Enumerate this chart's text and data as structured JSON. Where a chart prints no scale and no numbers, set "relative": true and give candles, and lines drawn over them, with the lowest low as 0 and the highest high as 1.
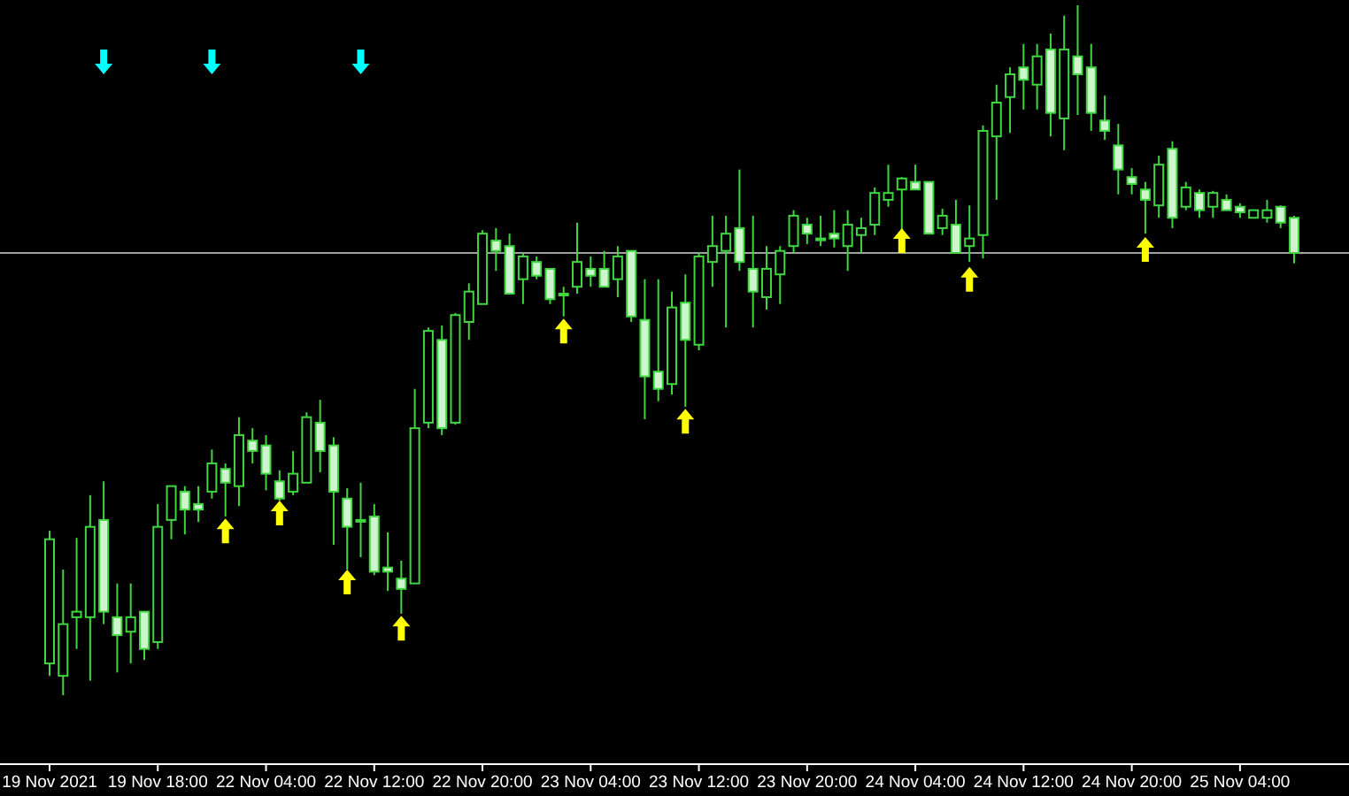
{
  "chart_data": {
    "type": "candlestick",
    "relative": true,
    "color": "#3fd63f",
    "categories": [
      "19 Nov 2021",
      null,
      null,
      null,
      null,
      null,
      null,
      null,
      "19 Nov 18:00",
      null,
      null,
      null,
      null,
      null,
      null,
      null,
      "22 Nov 04:00",
      null,
      null,
      null,
      null,
      null,
      null,
      null,
      "22 Nov 12:00",
      null,
      null,
      null,
      null,
      null,
      null,
      null,
      "22 Nov 20:00",
      null,
      null,
      null,
      null,
      null,
      null,
      null,
      "23 Nov 04:00",
      null,
      null,
      null,
      null,
      null,
      null,
      null,
      "23 Nov 12:00",
      null,
      null,
      null,
      null,
      null,
      null,
      null,
      "23 Nov 20:00",
      null,
      null,
      null,
      null,
      null,
      null,
      null,
      "24 Nov 04:00",
      null,
      null,
      null,
      null,
      null,
      null,
      null,
      "24 Nov 12:00",
      null,
      null,
      null,
      null,
      null,
      null,
      null,
      "24 Nov 20:00",
      null,
      null,
      null,
      null,
      null,
      null,
      null,
      "25 Nov 04:00",
      null,
      null,
      null,
      null
    ],
    "ohlc": [
      [
        0.046,
        0.238,
        0.028,
        0.226
      ],
      [
        0.028,
        0.182,
        0,
        0.103
      ],
      [
        0.113,
        0.228,
        0.067,
        0.121
      ],
      [
        0.113,
        0.29,
        0.021,
        0.244
      ],
      [
        0.254,
        0.31,
        0.103,
        0.121
      ],
      [
        0.113,
        0.162,
        0.033,
        0.087
      ],
      [
        0.092,
        0.162,
        0.046,
        0.113
      ],
      [
        0.121,
        0.121,
        0.051,
        0.067
      ],
      [
        0.077,
        0.277,
        0.067,
        0.244
      ],
      [
        0.254,
        0.303,
        0.226,
        0.303
      ],
      [
        0.295,
        0.303,
        0.233,
        0.269
      ],
      [
        0.277,
        0.303,
        0.251,
        0.269
      ],
      [
        0.295,
        0.356,
        0.285,
        0.336
      ],
      [
        0.328,
        0.336,
        0.259,
        0.308
      ],
      [
        0.303,
        0.403,
        0.274,
        0.377
      ],
      [
        0.369,
        0.387,
        0.336,
        0.354
      ],
      [
        0.362,
        0.377,
        0.297,
        0.321
      ],
      [
        0.31,
        0.326,
        0.282,
        0.285
      ],
      [
        0.295,
        0.354,
        0.29,
        0.321
      ],
      [
        0.308,
        0.41,
        0.308,
        0.403
      ],
      [
        0.395,
        0.428,
        0.323,
        0.354
      ],
      [
        0.362,
        0.374,
        0.218,
        0.295
      ],
      [
        0.285,
        0.3,
        0.182,
        0.244
      ],
      [
        0.254,
        0.308,
        0.2,
        0.254
      ],
      [
        0.259,
        0.277,
        0.174,
        0.179
      ],
      [
        0.185,
        0.236,
        0.151,
        0.179
      ],
      [
        0.169,
        0.195,
        0.118,
        0.154
      ],
      [
        0.162,
        0.444,
        0.162,
        0.387
      ],
      [
        0.395,
        0.533,
        0.387,
        0.528
      ],
      [
        0.515,
        0.536,
        0.377,
        0.387
      ],
      [
        0.395,
        0.554,
        0.392,
        0.551
      ],
      [
        0.541,
        0.597,
        0.515,
        0.585
      ],
      [
        0.567,
        0.674,
        0.567,
        0.669
      ],
      [
        0.659,
        0.677,
        0.615,
        0.644
      ],
      [
        0.651,
        0.669,
        0.582,
        0.582
      ],
      [
        0.603,
        0.641,
        0.567,
        0.636
      ],
      [
        0.628,
        0.636,
        0.603,
        0.608
      ],
      [
        0.618,
        0.618,
        0.567,
        0.574
      ],
      [
        0.582,
        0.592,
        0.549,
        0.582
      ],
      [
        0.592,
        0.685,
        0.582,
        0.628
      ],
      [
        0.618,
        0.636,
        0.592,
        0.608
      ],
      [
        0.618,
        0.644,
        0.592,
        0.592
      ],
      [
        0.603,
        0.651,
        0.577,
        0.636
      ],
      [
        0.644,
        0.644,
        0.541,
        0.549
      ],
      [
        0.544,
        0.603,
        0.4,
        0.462
      ],
      [
        0.469,
        0.603,
        0.426,
        0.444
      ],
      [
        0.451,
        0.585,
        0.436,
        0.562
      ],
      [
        0.569,
        0.61,
        0.418,
        0.515
      ],
      [
        0.508,
        0.641,
        0.5,
        0.636
      ],
      [
        0.628,
        0.695,
        0.592,
        0.651
      ],
      [
        0.644,
        0.695,
        0.533,
        0.669
      ],
      [
        0.677,
        0.762,
        0.615,
        0.628
      ],
      [
        0.618,
        0.695,
        0.533,
        0.585
      ],
      [
        0.577,
        0.651,
        0.559,
        0.618
      ],
      [
        0.61,
        0.651,
        0.567,
        0.644
      ],
      [
        0.651,
        0.703,
        0.641,
        0.695
      ],
      [
        0.682,
        0.692,
        0.654,
        0.669
      ],
      [
        0.662,
        0.695,
        0.651,
        0.662
      ],
      [
        0.669,
        0.703,
        0.649,
        0.662
      ],
      [
        0.651,
        0.703,
        0.615,
        0.682
      ],
      [
        0.667,
        0.692,
        0.641,
        0.677
      ],
      [
        0.682,
        0.736,
        0.667,
        0.728
      ],
      [
        0.718,
        0.769,
        0.708,
        0.728
      ],
      [
        0.733,
        0.751,
        0.674,
        0.749
      ],
      [
        0.744,
        0.769,
        0.733,
        0.733
      ],
      [
        0.744,
        0.744,
        0.669,
        0.669
      ],
      [
        0.677,
        0.705,
        0.667,
        0.695
      ],
      [
        0.682,
        0.718,
        0.641,
        0.641
      ],
      [
        0.651,
        0.71,
        0.628,
        0.662
      ],
      [
        0.667,
        0.826,
        0.633,
        0.818
      ],
      [
        0.81,
        0.885,
        0.718,
        0.859
      ],
      [
        0.867,
        0.91,
        0.815,
        0.9
      ],
      [
        0.91,
        0.944,
        0.849,
        0.892
      ],
      [
        0.885,
        0.944,
        0.849,
        0.926
      ],
      [
        0.936,
        0.959,
        0.81,
        0.844
      ],
      [
        0.836,
        0.985,
        0.79,
        0.936
      ],
      [
        0.926,
        1,
        0.841,
        0.9
      ],
      [
        0.91,
        0.944,
        0.818,
        0.844
      ],
      [
        0.833,
        0.869,
        0.805,
        0.818
      ],
      [
        0.797,
        0.828,
        0.726,
        0.762
      ],
      [
        0.751,
        0.764,
        0.726,
        0.741
      ],
      [
        0.733,
        0.744,
        0.669,
        0.718
      ],
      [
        0.71,
        0.782,
        0.692,
        0.769
      ],
      [
        0.792,
        0.803,
        0.677,
        0.692
      ],
      [
        0.708,
        0.744,
        0.703,
        0.736
      ],
      [
        0.728,
        0.733,
        0.692,
        0.703
      ],
      [
        0.708,
        0.731,
        0.692,
        0.728
      ],
      [
        0.718,
        0.726,
        0.703,
        0.703
      ],
      [
        0.708,
        0.713,
        0.692,
        0.7
      ],
      [
        0.692,
        0.703,
        0.692,
        0.703
      ],
      [
        0.692,
        0.718,
        0.685,
        0.703
      ],
      [
        0.708,
        0.71,
        0.677,
        0.685
      ],
      [
        0.692,
        0.695,
        0.626,
        0.641
      ]
    ],
    "series": [
      {
        "type": "scatter",
        "color": "#ffff00",
        "values": [
          null,
          null,
          null,
          null,
          null,
          null,
          null,
          null,
          null,
          null,
          null,
          null,
          null,
          0.238,
          null,
          null,
          null,
          0.264,
          null,
          null,
          null,
          null,
          0.164,
          null,
          null,
          null,
          0.097,
          null,
          null,
          null,
          null,
          null,
          null,
          null,
          null,
          null,
          null,
          null,
          0.528,
          null,
          null,
          null,
          null,
          null,
          null,
          null,
          null,
          0.397,
          null,
          null,
          null,
          null,
          null,
          null,
          null,
          null,
          null,
          null,
          null,
          null,
          null,
          null,
          null,
          0.659,
          null,
          null,
          null,
          null,
          0.603,
          null,
          null,
          null,
          null,
          null,
          null,
          null,
          null,
          null,
          null,
          null,
          null,
          0.646,
          null,
          null,
          null,
          null,
          null,
          null,
          null,
          null,
          null,
          null,
          null
        ]
      },
      {
        "type": "scatter",
        "color": "#00ffff",
        "values": [
          null,
          null,
          null,
          null,
          0.918,
          null,
          null,
          null,
          null,
          null,
          null,
          null,
          0.918,
          null,
          null,
          null,
          null,
          null,
          null,
          null,
          null,
          null,
          null,
          0.918,
          null,
          null,
          null,
          null,
          null,
          null,
          null,
          null,
          null,
          null,
          null,
          null,
          null,
          null,
          null,
          null,
          null,
          null,
          null,
          null,
          null,
          null,
          null,
          null,
          null,
          null,
          null,
          null,
          null,
          null,
          null,
          null,
          null,
          null,
          null,
          null,
          null,
          null,
          null,
          null,
          null,
          null,
          null,
          null,
          null,
          null,
          null,
          null,
          null,
          null,
          null,
          null,
          null,
          null,
          null,
          null,
          null,
          null,
          null,
          null,
          null,
          null,
          null,
          null,
          null,
          null,
          null,
          null,
          null
        ]
      }
    ],
    "ref_lines": [
      {
        "axis": "y",
        "value": 0.641,
        "color": "#a0a0a0"
      }
    ]
  }
}
